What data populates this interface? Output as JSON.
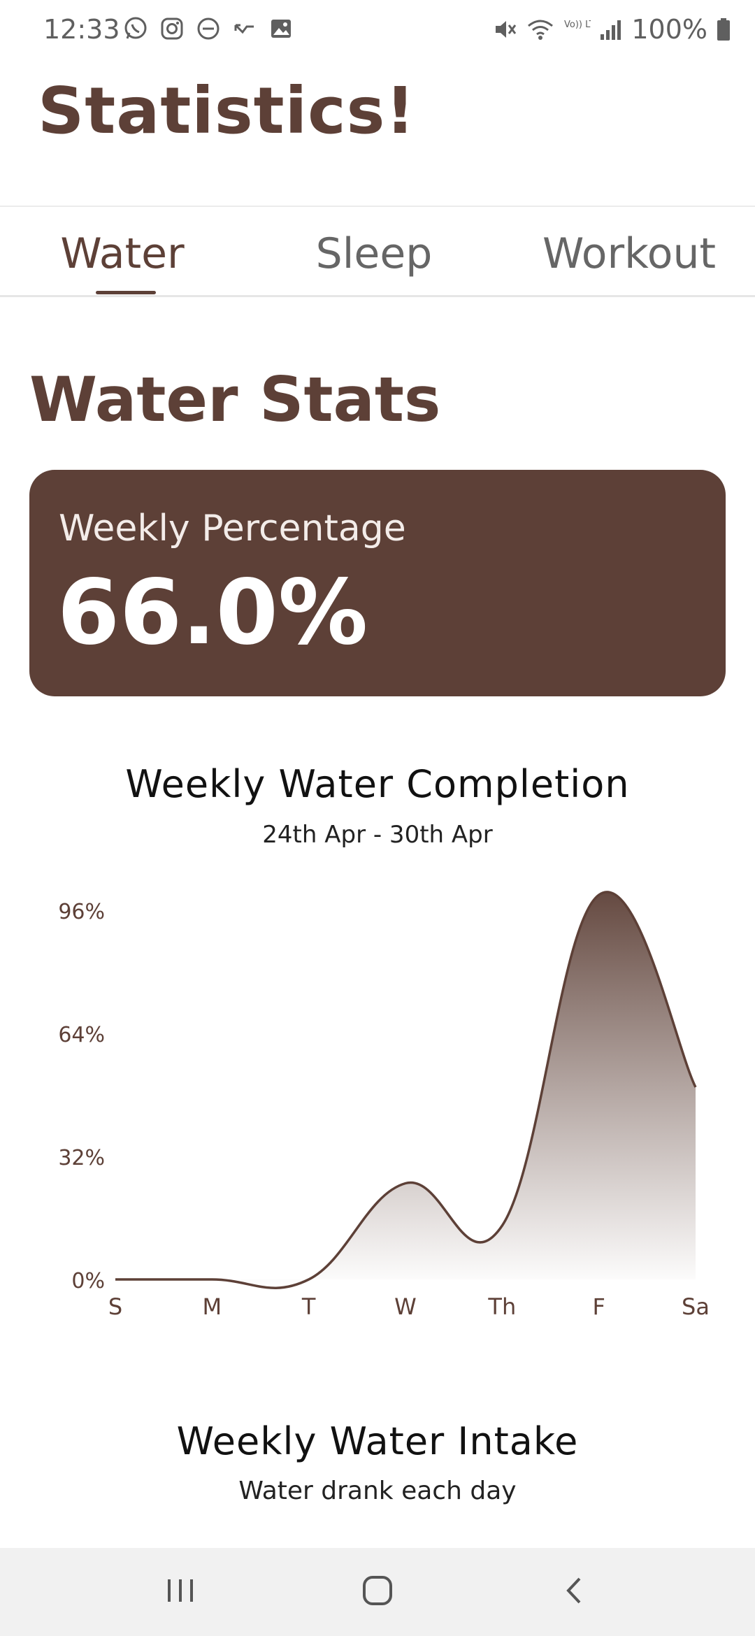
{
  "status_bar": {
    "time": "12:33",
    "left_icons": [
      "whatsapp-icon",
      "instagram-icon",
      "do-not-disturb-icon",
      "missed-call-icon",
      "gallery-icon"
    ],
    "right_icons": [
      "mute-icon",
      "wifi-icon",
      "volte-lte-icon",
      "signal-icon",
      "battery-icon"
    ],
    "volte_text": "Vo)) LTE1",
    "battery": "100%"
  },
  "header": {
    "title": "Statistics!"
  },
  "tabs": [
    {
      "label": "Water",
      "active": true
    },
    {
      "label": "Sleep",
      "active": false
    },
    {
      "label": "Workout",
      "active": false
    }
  ],
  "water_stats": {
    "title": "Water Stats",
    "card": {
      "label": "Weekly Percentage",
      "value": "66.0%"
    }
  },
  "chart_data": {
    "type": "area",
    "title": "Weekly Water Completion",
    "subtitle": "24th Apr - 30th Apr",
    "xlabel": "",
    "ylabel": "",
    "categories": [
      "S",
      "M",
      "T",
      "W",
      "Th",
      "F",
      "Sa"
    ],
    "series": [
      {
        "values": [
          0,
          0,
          0,
          25,
          14,
          100,
          50
        ]
      }
    ],
    "y_ticks": [
      "0%",
      "32%",
      "64%",
      "96%"
    ],
    "y_tick_values": [
      0,
      32,
      64,
      96
    ],
    "ylim": [
      0,
      100
    ],
    "grid": false,
    "legend": "none",
    "colors": {
      "line": "#5d4037",
      "fill_top": "#5d4037",
      "fill_bottom": "#ffffff",
      "axis_text": "#5d4037"
    }
  },
  "intake": {
    "title": "Weekly Water Intake",
    "subtitle": "Water drank each day"
  },
  "nav_bar": {
    "icons": [
      "recent-apps-icon",
      "home-icon",
      "back-icon"
    ]
  },
  "colors": {
    "primary": "#5d4037",
    "tab_inactive": "#666666",
    "nav_bg": "#f1f1f1"
  }
}
